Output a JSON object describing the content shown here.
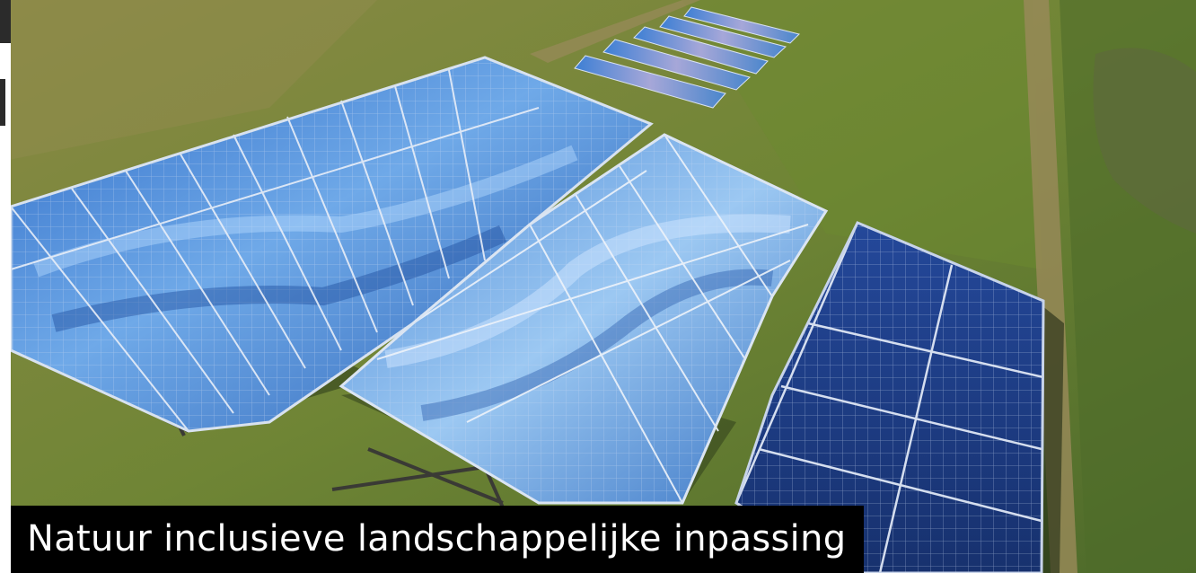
{
  "caption": {
    "text": "Natuur inclusieve landschappelijke inpassing"
  },
  "scene": {
    "subject": "solar-panel-field",
    "colors": {
      "grass_light": "#7d8f3c",
      "grass_dark": "#4f6a2a",
      "path": "#9a8a5a",
      "panel_blue": "#3f7fd0",
      "panel_light": "#8fc0f0",
      "panel_dark": "#1e3f8a",
      "caption_bg": "#000000",
      "caption_fg": "#ffffff"
    }
  }
}
